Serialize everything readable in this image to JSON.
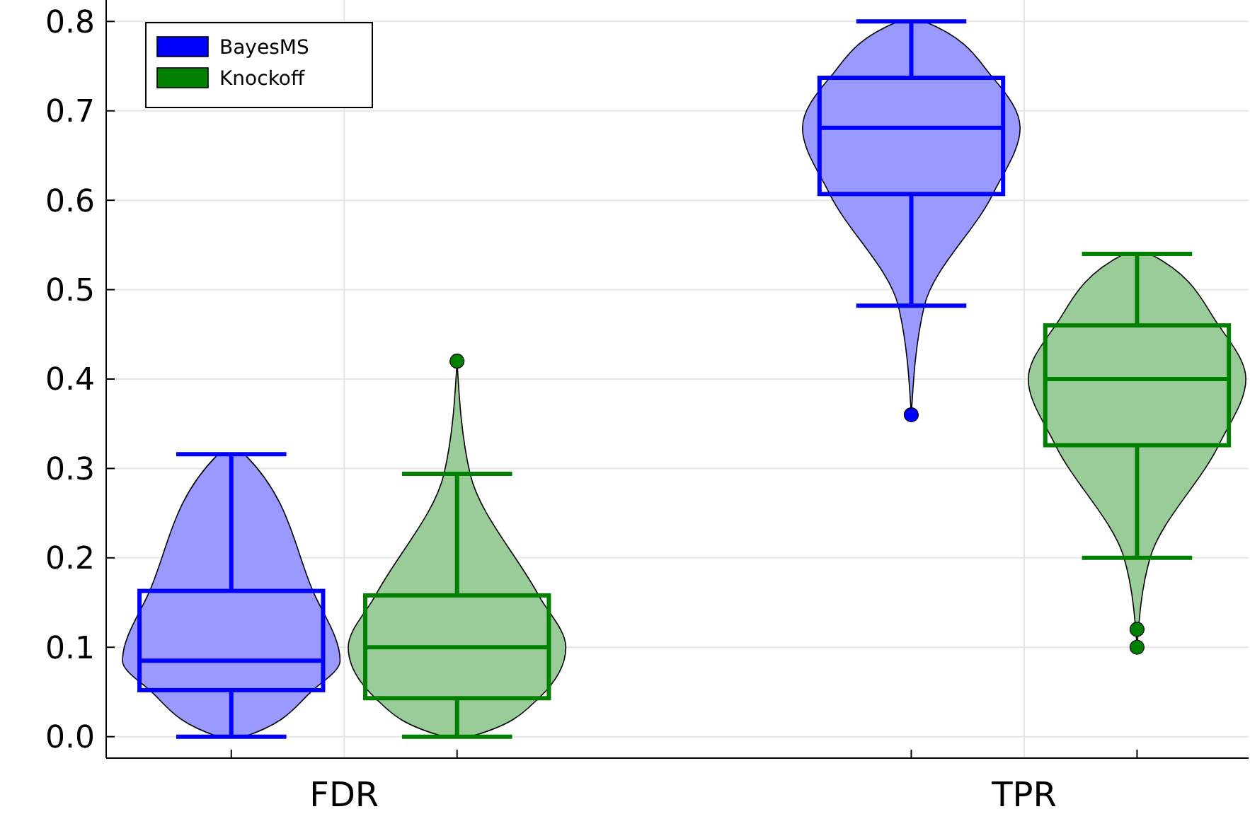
{
  "chart_data": {
    "type": "box",
    "categories": [
      "FDR",
      "TPR"
    ],
    "series": [
      {
        "name": "BayesMS",
        "color": "#0000ff",
        "boxes": [
          {
            "low": 0.0,
            "q1": 0.052,
            "median": 0.085,
            "q3": 0.163,
            "high": 0.316
          },
          {
            "low": 0.482,
            "q1": 0.607,
            "median": 0.681,
            "q3": 0.737,
            "high": 0.8,
            "outliers": [
              0.36
            ]
          }
        ]
      },
      {
        "name": "Knockoff",
        "color": "#008000",
        "boxes": [
          {
            "low": 0.0,
            "q1": 0.043,
            "median": 0.1,
            "q3": 0.158,
            "high": 0.294,
            "outliers": [
              0.42
            ]
          },
          {
            "low": 0.2,
            "q1": 0.326,
            "median": 0.4,
            "q3": 0.46,
            "high": 0.54,
            "outliers": [
              0.12,
              0.1
            ]
          }
        ]
      }
    ],
    "ylim": [
      -0.024,
      0.824
    ],
    "yticks": [
      {
        "value": 0,
        "label": "0.0"
      },
      {
        "value": 0.1,
        "label": "0.1"
      },
      {
        "value": 0.2,
        "label": "0.2"
      },
      {
        "value": 0.3,
        "label": "0.3"
      },
      {
        "value": 0.4,
        "label": "0.4"
      },
      {
        "value": 0.5,
        "label": "0.5"
      },
      {
        "value": 0.6,
        "label": "0.6"
      },
      {
        "value": 0.7,
        "label": "0.7"
      },
      {
        "value": 0.8,
        "label": "0.8"
      }
    ],
    "grid": true,
    "legend": "top left"
  }
}
